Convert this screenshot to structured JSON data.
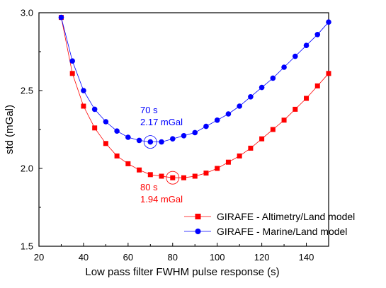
{
  "chart_data": {
    "type": "line",
    "xlabel": "Low pass filter FWHM pulse response (s)",
    "ylabel": "std (mGal)",
    "xlim": [
      20,
      150
    ],
    "ylim": [
      1.5,
      3.0
    ],
    "x_ticks": [
      20,
      40,
      60,
      80,
      100,
      120,
      140
    ],
    "y_ticks": [
      1.5,
      2.0,
      2.5,
      3.0
    ],
    "x_tick_labels": [
      "20",
      "40",
      "60",
      "80",
      "100",
      "120",
      "140"
    ],
    "y_tick_labels": [
      "1.5",
      "2.0",
      "2.5",
      "3.0"
    ],
    "legend_position": "bottom-right",
    "series": [
      {
        "name": "GIRAFE - Altimetry/Land model",
        "color": "#ff0000",
        "marker": "square",
        "x": [
          30,
          35,
          40,
          45,
          50,
          55,
          60,
          65,
          70,
          75,
          80,
          85,
          90,
          95,
          100,
          105,
          110,
          115,
          120,
          125,
          130,
          135,
          140,
          145,
          150
        ],
        "y": [
          2.97,
          2.61,
          2.4,
          2.26,
          2.16,
          2.08,
          2.03,
          1.99,
          1.96,
          1.95,
          1.94,
          1.94,
          1.95,
          1.97,
          2.0,
          2.04,
          2.08,
          2.13,
          2.19,
          2.25,
          2.31,
          2.38,
          2.45,
          2.53,
          2.61
        ]
      },
      {
        "name": "GIRAFE - Marine/Land model",
        "color": "#0000ff",
        "marker": "circle",
        "x": [
          30,
          35,
          40,
          45,
          50,
          55,
          60,
          65,
          70,
          75,
          80,
          85,
          90,
          95,
          100,
          105,
          110,
          115,
          120,
          125,
          130,
          135,
          140,
          145,
          150
        ],
        "y": [
          2.97,
          2.69,
          2.5,
          2.38,
          2.3,
          2.24,
          2.2,
          2.18,
          2.17,
          2.17,
          2.19,
          2.21,
          2.23,
          2.27,
          2.31,
          2.35,
          2.4,
          2.46,
          2.52,
          2.58,
          2.65,
          2.72,
          2.79,
          2.86,
          2.94
        ]
      }
    ],
    "annotations": [
      {
        "series": "GIRAFE - Marine/Land model",
        "x": 70,
        "y": 2.17,
        "lines": [
          "70 s",
          "2.17 mGal"
        ],
        "color": "#0000ff"
      },
      {
        "series": "GIRAFE - Altimetry/Land model",
        "x": 80,
        "y": 1.94,
        "lines": [
          "80 s",
          "1.94 mGal"
        ],
        "color": "#ff0000"
      }
    ]
  }
}
